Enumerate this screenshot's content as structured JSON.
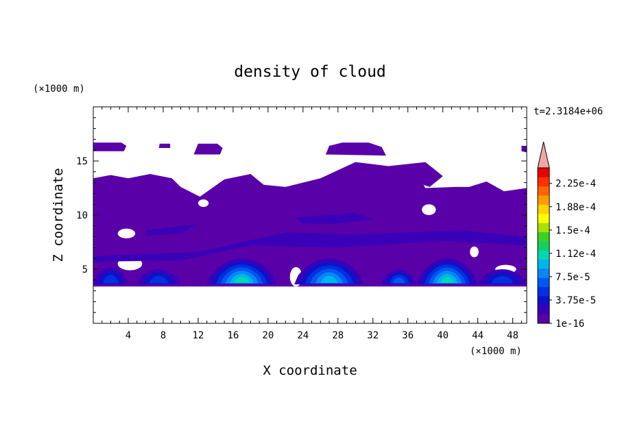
{
  "chart_data": {
    "type": "heatmap",
    "title": "density of cloud",
    "xlabel": "X coordinate",
    "ylabel": "Z coordinate",
    "x_unit": "(×1000 m)",
    "y_unit": "(×1000 m)",
    "time_label": "t=2.3184e+06",
    "xlim": [
      0,
      49.6
    ],
    "ylim": [
      0,
      20
    ],
    "x_ticks": [
      "4",
      "8",
      "12",
      "16",
      "20",
      "24",
      "28",
      "32",
      "36",
      "40",
      "44",
      "48"
    ],
    "y_ticks": [
      "5",
      "10",
      "15"
    ],
    "colorbar": {
      "labels": [
        "1e-16",
        "3.75e-5",
        "7.5e-5",
        "1.12e-4",
        "1.5e-4",
        "1.88e-4",
        "2.25e-4"
      ],
      "label_values": [
        0,
        3.75e-05,
        7.5e-05,
        0.0001125,
        0.00015,
        0.0001875,
        0.000225
      ],
      "level_colors": [
        "#5a00a8",
        "#3a00b8",
        "#1010c8",
        "#0030e0",
        "#0058f0",
        "#0a86f5",
        "#00b4ec",
        "#00d8b0",
        "#14d060",
        "#3cd020",
        "#a8e000",
        "#ffff00",
        "#ffd200",
        "#ff9c00",
        "#ff6400",
        "#ff3000",
        "#e80000"
      ],
      "extend_color": "#f4a6a6",
      "max_value": 0.00025
    },
    "cloud_regions": [
      {
        "name": "main layer",
        "x": [
          0,
          49.6
        ],
        "z": [
          3.5,
          13.5
        ],
        "level": 0
      },
      {
        "name": "upper patch left",
        "x": [
          0,
          3.8
        ],
        "z": [
          15.8,
          16.6
        ],
        "level": 0
      },
      {
        "name": "upper patch mid",
        "x": [
          11.5,
          14.5
        ],
        "z": [
          15.5,
          16.5
        ],
        "level": 0
      },
      {
        "name": "upper patch right",
        "x": [
          26.5,
          33.5
        ],
        "z": [
          15.5,
          16.6
        ],
        "level": 0
      },
      {
        "name": "plume 1",
        "x": [
          13,
          21
        ],
        "z": [
          3.6,
          6
        ],
        "peak_level": 7
      },
      {
        "name": "plume 2",
        "x": [
          23,
          31
        ],
        "z": [
          3.6,
          6
        ],
        "peak_level": 6
      },
      {
        "name": "plume 3",
        "x": [
          37,
          44
        ],
        "z": [
          3.6,
          6
        ],
        "peak_level": 7
      },
      {
        "name": "plume 4",
        "x": [
          0,
          4
        ],
        "z": [
          3.6,
          5.2
        ],
        "peak_level": 3
      },
      {
        "name": "plume 5",
        "x": [
          5,
          10
        ],
        "z": [
          3.6,
          5
        ],
        "peak_level": 3
      },
      {
        "name": "plume 6",
        "x": [
          33,
          37
        ],
        "z": [
          3.6,
          5
        ],
        "peak_level": 4
      },
      {
        "name": "plume 7",
        "x": [
          44,
          49.6
        ],
        "z": [
          3.6,
          5
        ],
        "peak_level": 3
      }
    ],
    "grid": false
  }
}
